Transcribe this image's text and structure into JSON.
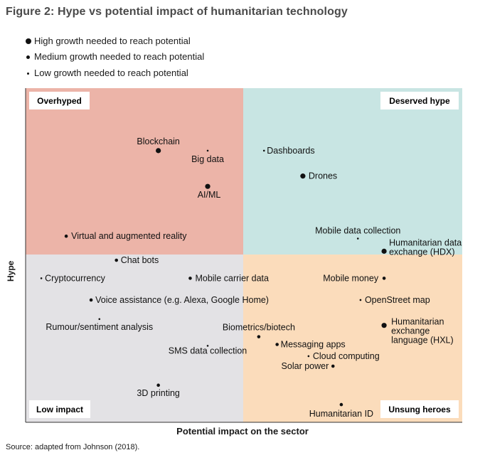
{
  "figure": {
    "title": "Figure 2: Hype vs potential impact of humanitarian technology",
    "source": "Source: adapted from Johnson (2018)."
  },
  "legend": [
    {
      "label": "High growth needed to reach potential",
      "size": "high"
    },
    {
      "label": "Medium growth needed to reach potential",
      "size": "medium"
    },
    {
      "label": "Low growth needed to reach potential",
      "size": "low"
    }
  ],
  "colors": {
    "overhyped": "#ecb4a8",
    "deserved_hype": "#c8e5e3",
    "low_impact": "#e3e2e5",
    "unsung_heroes": "#fbdcbb",
    "dot": "#111111"
  },
  "chart_data": {
    "type": "scatter",
    "title": "Figure 2: Hype vs potential impact of humanitarian technology",
    "xlabel": "Potential impact on the sector",
    "ylabel": "Hype",
    "xlim": [
      0,
      100
    ],
    "ylim": [
      0,
      100
    ],
    "grid": false,
    "quadrants": {
      "top_left": "Overhyped",
      "top_right": "Deserved hype",
      "bottom_left": "Low impact",
      "bottom_right": "Unsung heroes"
    },
    "points": [
      {
        "label": "Blockchain",
        "x": 30.4,
        "y": 81.3,
        "growth": "high"
      },
      {
        "label": "Big data",
        "x": 41.7,
        "y": 81.3,
        "growth": "low"
      },
      {
        "label": "AI/ML",
        "x": 41.7,
        "y": 70.6,
        "growth": "high"
      },
      {
        "label": "Dashboards",
        "x": 54.6,
        "y": 81.3,
        "growth": "low"
      },
      {
        "label": "Drones",
        "x": 63.5,
        "y": 73.7,
        "growth": "high"
      },
      {
        "label": "Mobile data collection",
        "x": 76.1,
        "y": 55.0,
        "growth": "low"
      },
      {
        "label": "Humanitarian data exchange (HDX)",
        "x": 82.1,
        "y": 51.2,
        "growth": "high"
      },
      {
        "label": "Virtual and augmented reality",
        "x": 9.3,
        "y": 55.7,
        "growth": "medium"
      },
      {
        "label": "Chat bots",
        "x": 20.8,
        "y": 48.5,
        "growth": "medium"
      },
      {
        "label": "Cryptocurrency",
        "x": 3.6,
        "y": 43.1,
        "growth": "low"
      },
      {
        "label": "Mobile carrier data",
        "x": 37.7,
        "y": 43.1,
        "growth": "medium"
      },
      {
        "label": "Voice assistance (e.g. Alexa, Google Home)",
        "x": 15.0,
        "y": 36.6,
        "growth": "medium"
      },
      {
        "label": "Rumour/sentiment analysis",
        "x": 16.9,
        "y": 30.9,
        "growth": "low"
      },
      {
        "label": "SMS data collection",
        "x": 41.7,
        "y": 22.9,
        "growth": "low"
      },
      {
        "label": "3D printing",
        "x": 30.4,
        "y": 11.1,
        "growth": "medium"
      },
      {
        "label": "Biometrics/biotech",
        "x": 53.4,
        "y": 25.6,
        "growth": "medium"
      },
      {
        "label": "Messaging apps",
        "x": 57.6,
        "y": 23.3,
        "growth": "medium"
      },
      {
        "label": "Cloud computing",
        "x": 64.8,
        "y": 19.8,
        "growth": "low"
      },
      {
        "label": "Solar power",
        "x": 70.4,
        "y": 16.8,
        "growth": "medium"
      },
      {
        "label": "Humanitarian ID",
        "x": 72.3,
        "y": 5.3,
        "growth": "medium"
      },
      {
        "label": "Mobile money",
        "x": 82.1,
        "y": 43.1,
        "growth": "medium"
      },
      {
        "label": "OpenStreet map",
        "x": 76.7,
        "y": 36.6,
        "growth": "low"
      },
      {
        "label": "Humanitarian exchange language (HXL)",
        "x": 82.1,
        "y": 29.0,
        "growth": "high"
      }
    ]
  }
}
